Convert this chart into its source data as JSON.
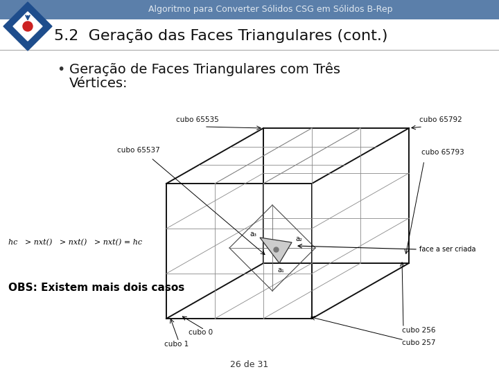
{
  "title": "Algoritmo para Converter Sólidos CSG em Sólidos B-Rep",
  "slide_title": "5.2  Geração das Faces Triangulares (cont.)",
  "bullet_line1": "Geração de Faces Triangulares com Três",
  "bullet_line2": "Vértices:",
  "obs": "OBS: Existem mais dois casos",
  "footer": "26 de 31",
  "header_bg": "#5b7faa",
  "header_text_color": "#e0e8f0",
  "slide_title_color": "#111111",
  "bullet_color": "#111111",
  "obs_color": "#000000",
  "bg_color": "#ffffff",
  "logo_diamond_outer": "#1e4d8c",
  "logo_diamond_inner": "#cc2222",
  "cube_label_top_left": "cubo 65535",
  "cube_label_top_right": "cubo 65792",
  "cube_label_mid_left": "cubo 65537",
  "cube_label_mid_right": "cubo 65793",
  "cube_label_bot_left0": "cubo 0",
  "cube_label_bot_left1": "cubo 1",
  "cube_label_bot_right0": "cubo 256",
  "cube_label_bot_right1": "cubo 257",
  "face_label": "face a ser criada",
  "hc_formula": "hc   > nxt()   > nxt()   > nxt() = hc"
}
